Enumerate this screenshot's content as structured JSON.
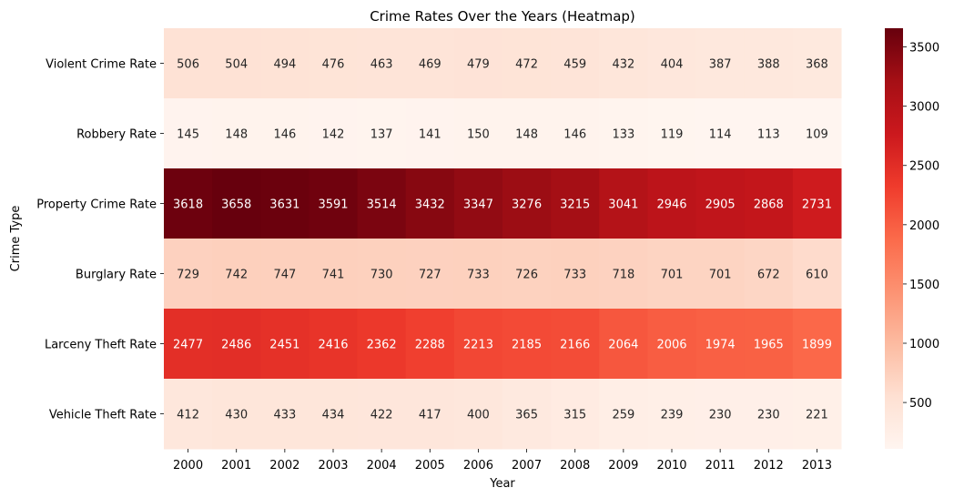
{
  "chart_data": {
    "type": "heatmap",
    "title": "Crime Rates Over the Years (Heatmap)",
    "xlabel": "Year",
    "ylabel": "Crime Type",
    "x": [
      "2000",
      "2001",
      "2002",
      "2003",
      "2004",
      "2005",
      "2006",
      "2007",
      "2008",
      "2009",
      "2010",
      "2011",
      "2012",
      "2013"
    ],
    "y": [
      "Violent Crime Rate",
      "Robbery Rate",
      "Property Crime Rate",
      "Burglary Rate",
      "Larceny Theft Rate",
      "Vehicle Theft Rate"
    ],
    "values": [
      [
        506,
        504,
        494,
        476,
        463,
        469,
        479,
        472,
        459,
        432,
        404,
        387,
        388,
        368
      ],
      [
        145,
        148,
        146,
        142,
        137,
        141,
        150,
        148,
        146,
        133,
        119,
        114,
        113,
        109
      ],
      [
        3618,
        3658,
        3631,
        3591,
        3514,
        3432,
        3347,
        3276,
        3215,
        3041,
        2946,
        2905,
        2868,
        2731
      ],
      [
        729,
        742,
        747,
        741,
        730,
        727,
        733,
        726,
        733,
        718,
        701,
        701,
        672,
        610
      ],
      [
        2477,
        2486,
        2451,
        2416,
        2362,
        2288,
        2213,
        2185,
        2166,
        2064,
        2006,
        1974,
        1965,
        1899
      ],
      [
        412,
        430,
        433,
        434,
        422,
        417,
        400,
        365,
        315,
        259,
        239,
        230,
        230,
        221
      ]
    ],
    "colormap": "Reds",
    "vmin": 109,
    "vmax": 3658,
    "colorbar_ticks": [
      500,
      1000,
      1500,
      2000,
      2500,
      3000,
      3500
    ],
    "annotations": true
  }
}
